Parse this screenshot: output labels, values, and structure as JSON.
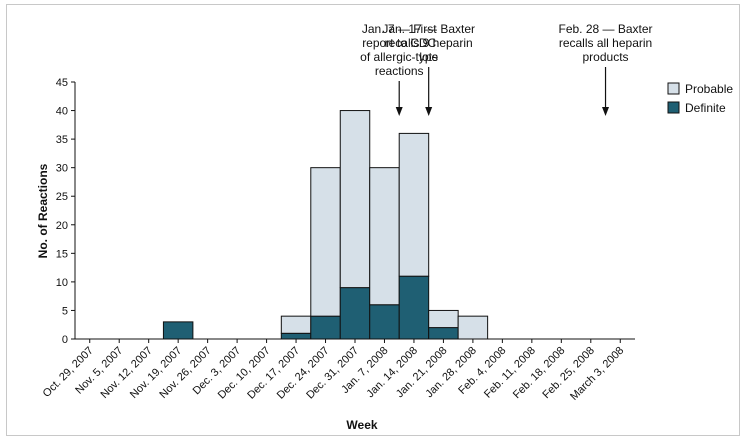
{
  "chart_data": {
    "type": "bar",
    "stacked": true,
    "xlabel": "Week",
    "ylabel": "No. of Reactions",
    "ylim": [
      0,
      45
    ],
    "yticks": [
      0,
      5,
      10,
      15,
      20,
      25,
      30,
      35,
      40,
      45
    ],
    "grid": false,
    "legend_position": "right",
    "categories": [
      "Oct. 29, 2007",
      "Nov. 5, 2007",
      "Nov. 12, 2007",
      "Nov. 19, 2007",
      "Nov. 26, 2007",
      "Dec. 3, 2007",
      "Dec. 10, 2007",
      "Dec. 17, 2007",
      "Dec. 24, 2007",
      "Dec. 31, 2007",
      "Jan. 7, 2008",
      "Jan. 14, 2008",
      "Jan. 21, 2008",
      "Jan. 28, 2008",
      "Feb. 4, 2008",
      "Feb. 11, 2008",
      "Feb. 18, 2008",
      "Feb. 25, 2008",
      "March 3, 2008"
    ],
    "series": [
      {
        "name": "Definite",
        "color": "#1f5f73",
        "values": [
          0,
          0,
          0,
          3,
          0,
          0,
          0,
          1,
          4,
          9,
          6,
          11,
          2,
          0,
          0,
          0,
          0,
          0,
          0
        ]
      },
      {
        "name": "Probable",
        "color": "#d6e0e8",
        "values": [
          0,
          0,
          0,
          0,
          0,
          0,
          0,
          3,
          26,
          31,
          24,
          25,
          3,
          4,
          0,
          0,
          0,
          0,
          0
        ]
      }
    ],
    "legend": [
      "Probable",
      "Definite"
    ],
    "annotations": [
      {
        "boundary_index": 11,
        "lines": [
          "Jan. 7 — First",
          "report to CDC",
          "of allergic-type",
          "reactions"
        ]
      },
      {
        "boundary_index": 12,
        "lines": [
          "Jan. 17 — Baxter",
          "recalls 9 heparin",
          "lots"
        ]
      },
      {
        "boundary_index": 18,
        "lines": [
          "Feb. 28 — Baxter",
          "recalls all heparin",
          "products"
        ]
      }
    ]
  }
}
